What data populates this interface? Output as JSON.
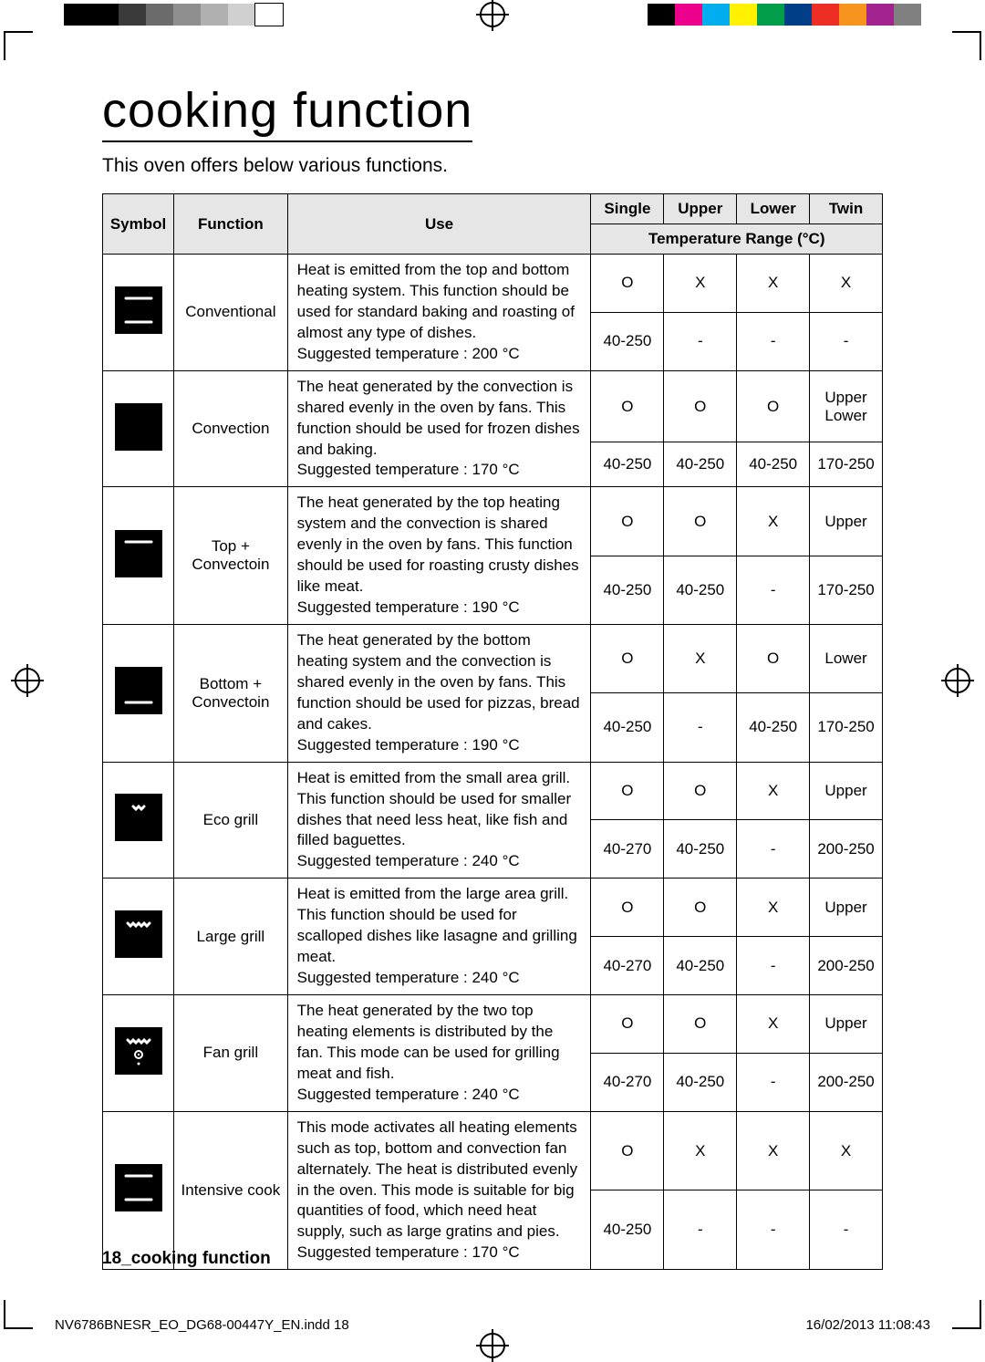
{
  "title": "cooking function",
  "intro": "This oven offers below various functions.",
  "headers": {
    "symbol": "Symbol",
    "function": "Function",
    "use": "Use",
    "single": "Single",
    "upper": "Upper",
    "lower": "Lower",
    "twin": "Twin",
    "temp_range": "Temperature Range (°C)"
  },
  "rows": [
    {
      "function": "Conventional",
      "use": "Heat is emitted from the top and bottom heating system. This function should be used for standard baking and roasting of almost any type of dishes.\nSuggested temperature : 200 °C",
      "avail": {
        "single": "O",
        "upper": "X",
        "lower": "X",
        "twin": "X"
      },
      "temp": {
        "single": "40-250",
        "upper": "-",
        "lower": "-",
        "twin": "-"
      }
    },
    {
      "function": "Convection",
      "use": "The heat generated by the convection is shared evenly in the oven by fans. This function should be used for frozen dishes and baking.\nSuggested temperature : 170 °C",
      "avail": {
        "single": "O",
        "upper": "O",
        "lower": "O",
        "twin": "Upper\nLower"
      },
      "temp": {
        "single": "40-250",
        "upper": "40-250",
        "lower": "40-250",
        "twin": "170-250"
      }
    },
    {
      "function": "Top + Convectoin",
      "use": "The heat generated by the top heating system and the convection is shared evenly in the oven by fans. This function should be used for roasting crusty dishes like meat.\nSuggested temperature : 190 °C",
      "avail": {
        "single": "O",
        "upper": "O",
        "lower": "X",
        "twin": "Upper"
      },
      "temp": {
        "single": "40-250",
        "upper": "40-250",
        "lower": "-",
        "twin": "170-250"
      }
    },
    {
      "function": "Bottom + Convectoin",
      "use": "The heat generated by the bottom heating system and the convection is shared evenly in the oven by fans. This function should be used for pizzas, bread and cakes.\nSuggested temperature : 190 °C",
      "avail": {
        "single": "O",
        "upper": "X",
        "lower": "O",
        "twin": "Lower"
      },
      "temp": {
        "single": "40-250",
        "upper": "-",
        "lower": "40-250",
        "twin": "170-250"
      }
    },
    {
      "function": "Eco grill",
      "use": "Heat is emitted from the small area grill. This function should be used for smaller dishes that need less heat, like fish and filled baguettes.\nSuggested temperature : 240 °C",
      "avail": {
        "single": "O",
        "upper": "O",
        "lower": "X",
        "twin": "Upper"
      },
      "temp": {
        "single": "40-270",
        "upper": "40-250",
        "lower": "-",
        "twin": "200-250"
      }
    },
    {
      "function": "Large grill",
      "use": "Heat is emitted from the large area grill. This function should be used for scalloped dishes like lasagne and grilling meat.\nSuggested temperature : 240 °C",
      "avail": {
        "single": "O",
        "upper": "O",
        "lower": "X",
        "twin": "Upper"
      },
      "temp": {
        "single": "40-270",
        "upper": "40-250",
        "lower": "-",
        "twin": "200-250"
      }
    },
    {
      "function": "Fan grill",
      "use": "The heat generated by the two top heating elements is distributed by the fan. This mode can be used for grilling meat and fish.\nSuggested temperature : 240 °C",
      "avail": {
        "single": "O",
        "upper": "O",
        "lower": "X",
        "twin": "Upper"
      },
      "temp": {
        "single": "40-270",
        "upper": "40-250",
        "lower": "-",
        "twin": "200-250"
      }
    },
    {
      "function": "Intensive cook",
      "use": "This mode activates all heating elements such as top, bottom and convection fan alternately. The heat is distributed evenly in the oven. This mode is suitable for big quantities of food, which need heat supply, such as large gratins and pies.\nSuggested temperature : 170 °C",
      "avail": {
        "single": "O",
        "upper": "X",
        "lower": "X",
        "twin": "X"
      },
      "temp": {
        "single": "40-250",
        "upper": "-",
        "lower": "-",
        "twin": "-"
      }
    }
  ],
  "footer": {
    "section": "18_cooking function",
    "file": "NV6786BNESR_EO_DG68-00447Y_EN.indd   18",
    "timestamp": "16/02/2013   11:08:43"
  },
  "colorbar_left": [
    "#000000",
    "#000000",
    "#3a3a3a",
    "#6b6b6b",
    "#8f8f8f",
    "#b0b0b0",
    "#d0d0d0",
    "#ffffff"
  ],
  "colorbar_right": [
    "#000000",
    "#ed008c",
    "#00adee",
    "#fff100",
    "#009e49",
    "#003f87",
    "#ee2e24",
    "#f7941e",
    "#a3238e",
    "#808080"
  ]
}
